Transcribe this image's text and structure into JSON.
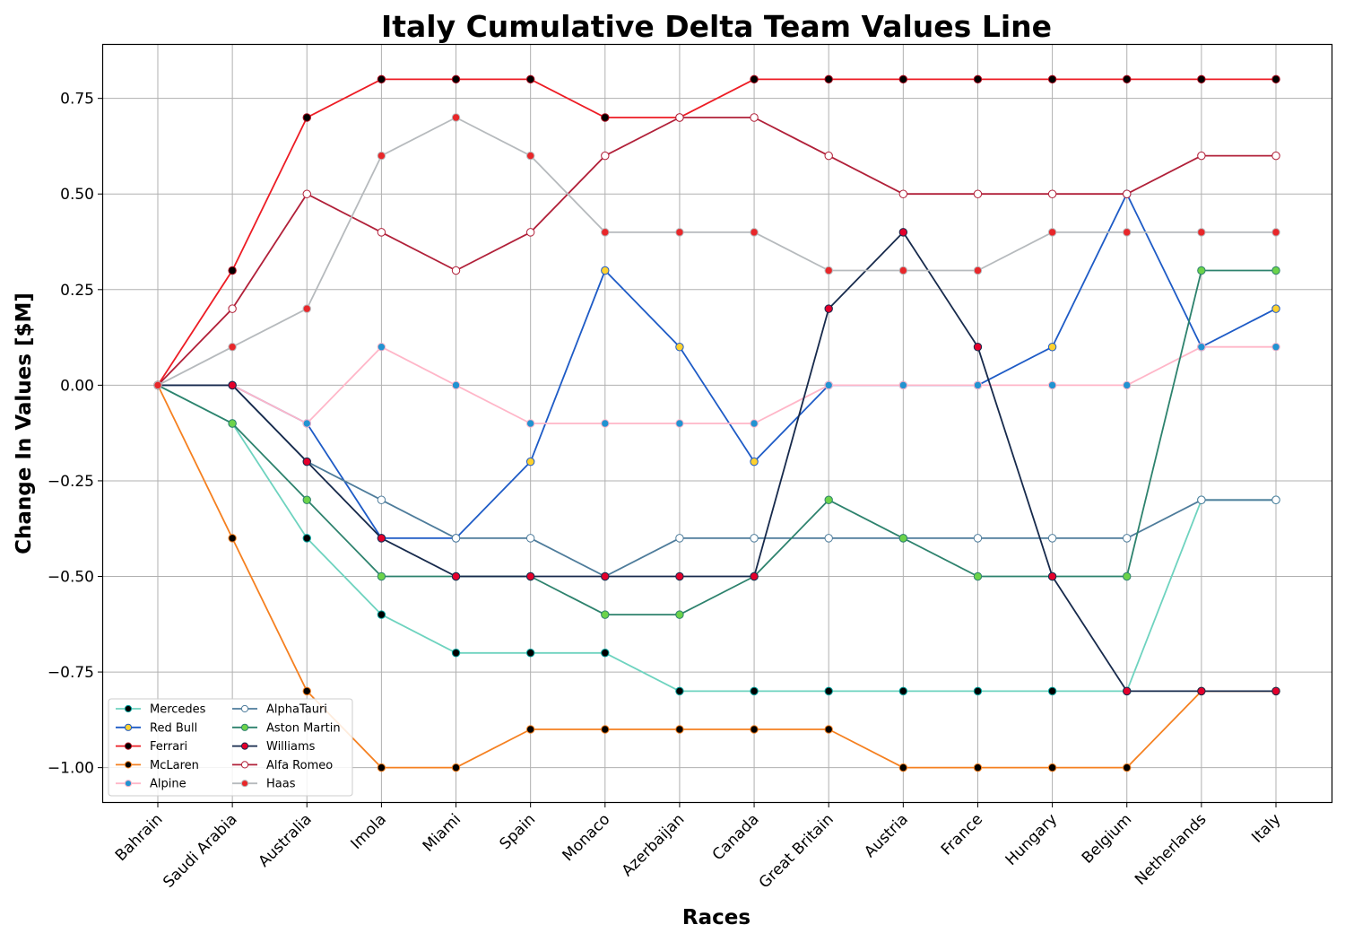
{
  "chart_data": {
    "type": "line",
    "title": "Italy Cumulative Delta Team Values Line",
    "xlabel": "Races",
    "ylabel": "Change In Values [$M]",
    "ylim": [
      -1.09,
      0.89
    ],
    "grid": true,
    "legend_position": "lower-left",
    "categories": [
      "Bahrain",
      "Saudi Arabia",
      "Australia",
      "Imola",
      "Miami",
      "Spain",
      "Monaco",
      "Azerbaijan",
      "Canada",
      "Great Britain",
      "Austria",
      "France",
      "Hungary",
      "Belgium",
      "Netherlands",
      "Italy"
    ],
    "y_ticks": [
      {
        "value": 0.75,
        "label": "0.75"
      },
      {
        "value": 0.5,
        "label": "0.50"
      },
      {
        "value": 0.25,
        "label": "0.25"
      },
      {
        "value": 0.0,
        "label": "0.00"
      },
      {
        "value": -0.25,
        "label": "−0.25"
      },
      {
        "value": -0.5,
        "label": "−0.50"
      },
      {
        "value": -0.75,
        "label": "−0.75"
      },
      {
        "value": -1.0,
        "label": "−1.00"
      }
    ],
    "series": [
      {
        "name": "Mercedes",
        "line_color": "#6ed3bf",
        "marker_fill": "#000000",
        "marker_edge": "#00a19c",
        "values": [
          0,
          -0.1,
          -0.4,
          -0.6,
          -0.7,
          -0.7,
          -0.7,
          -0.8,
          -0.8,
          -0.8,
          -0.8,
          -0.8,
          -0.8,
          -0.8,
          -0.3,
          -0.3
        ]
      },
      {
        "name": "Red Bull",
        "line_color": "#1e5bc6",
        "marker_fill": "#ffd12e",
        "marker_edge": "#1e5bc6",
        "values": [
          0,
          0,
          -0.1,
          -0.4,
          -0.4,
          -0.2,
          0.3,
          0.1,
          -0.2,
          0,
          0,
          0,
          0.1,
          0.5,
          0.1,
          0.2
        ]
      },
      {
        "name": "Ferrari",
        "line_color": "#ed1c24",
        "marker_fill": "#000000",
        "marker_edge": "#a6051a",
        "values": [
          0,
          0.3,
          0.7,
          0.8,
          0.8,
          0.8,
          0.7,
          0.7,
          0.8,
          0.8,
          0.8,
          0.8,
          0.8,
          0.8,
          0.8,
          0.8
        ]
      },
      {
        "name": "McLaren",
        "line_color": "#f58020",
        "marker_fill": "#000000",
        "marker_edge": "#f58020",
        "values": [
          0,
          -0.4,
          -0.8,
          -1.0,
          -1.0,
          -0.9,
          -0.9,
          -0.9,
          -0.9,
          -0.9,
          -1.0,
          -1.0,
          -1.0,
          -1.0,
          -0.8,
          -0.8
        ]
      },
      {
        "name": "Alpine",
        "line_color": "#ffb6c8",
        "marker_fill": "#2293d1",
        "marker_edge": "#ffb6c8",
        "values": [
          0,
          0,
          -0.1,
          0.1,
          0,
          -0.1,
          -0.1,
          -0.1,
          -0.1,
          0,
          0,
          0,
          0,
          0,
          0.1,
          0.1
        ]
      },
      {
        "name": "AlphaTauri",
        "line_color": "#4e7c9b",
        "marker_fill": "#ffffff",
        "marker_edge": "#4e7c9b",
        "values": [
          0,
          0,
          -0.2,
          -0.3,
          -0.4,
          -0.4,
          -0.5,
          -0.4,
          -0.4,
          -0.4,
          -0.4,
          -0.4,
          -0.4,
          -0.4,
          -0.3,
          -0.3
        ]
      },
      {
        "name": "Aston Martin",
        "line_color": "#2d826d",
        "marker_fill": "#6cd34a",
        "marker_edge": "#2d826d",
        "values": [
          0,
          -0.1,
          -0.3,
          -0.5,
          -0.5,
          -0.5,
          -0.6,
          -0.6,
          -0.5,
          -0.3,
          -0.4,
          -0.5,
          -0.5,
          -0.5,
          0.3,
          0.3
        ]
      },
      {
        "name": "Williams",
        "line_color": "#172a4c",
        "marker_fill": "#e4002b",
        "marker_edge": "#172a4c",
        "values": [
          0,
          0,
          -0.2,
          -0.4,
          -0.5,
          -0.5,
          -0.5,
          -0.5,
          -0.5,
          0.2,
          0.4,
          0.1,
          -0.5,
          -0.8,
          -0.8,
          -0.8
        ]
      },
      {
        "name": "Alfa Romeo",
        "line_color": "#b12039",
        "marker_fill": "#ffffff",
        "marker_edge": "#b12039",
        "values": [
          0,
          0.2,
          0.5,
          0.4,
          0.3,
          0.4,
          0.6,
          0.7,
          0.7,
          0.6,
          0.5,
          0.5,
          0.5,
          0.5,
          0.6,
          0.6
        ]
      },
      {
        "name": "Haas",
        "line_color": "#b6babd",
        "marker_fill": "#e8272a",
        "marker_edge": "#b6babd",
        "values": [
          0,
          0.1,
          0.2,
          0.6,
          0.7,
          0.6,
          0.4,
          0.4,
          0.4,
          0.3,
          0.3,
          0.3,
          0.4,
          0.4,
          0.4,
          0.4
        ]
      }
    ]
  }
}
